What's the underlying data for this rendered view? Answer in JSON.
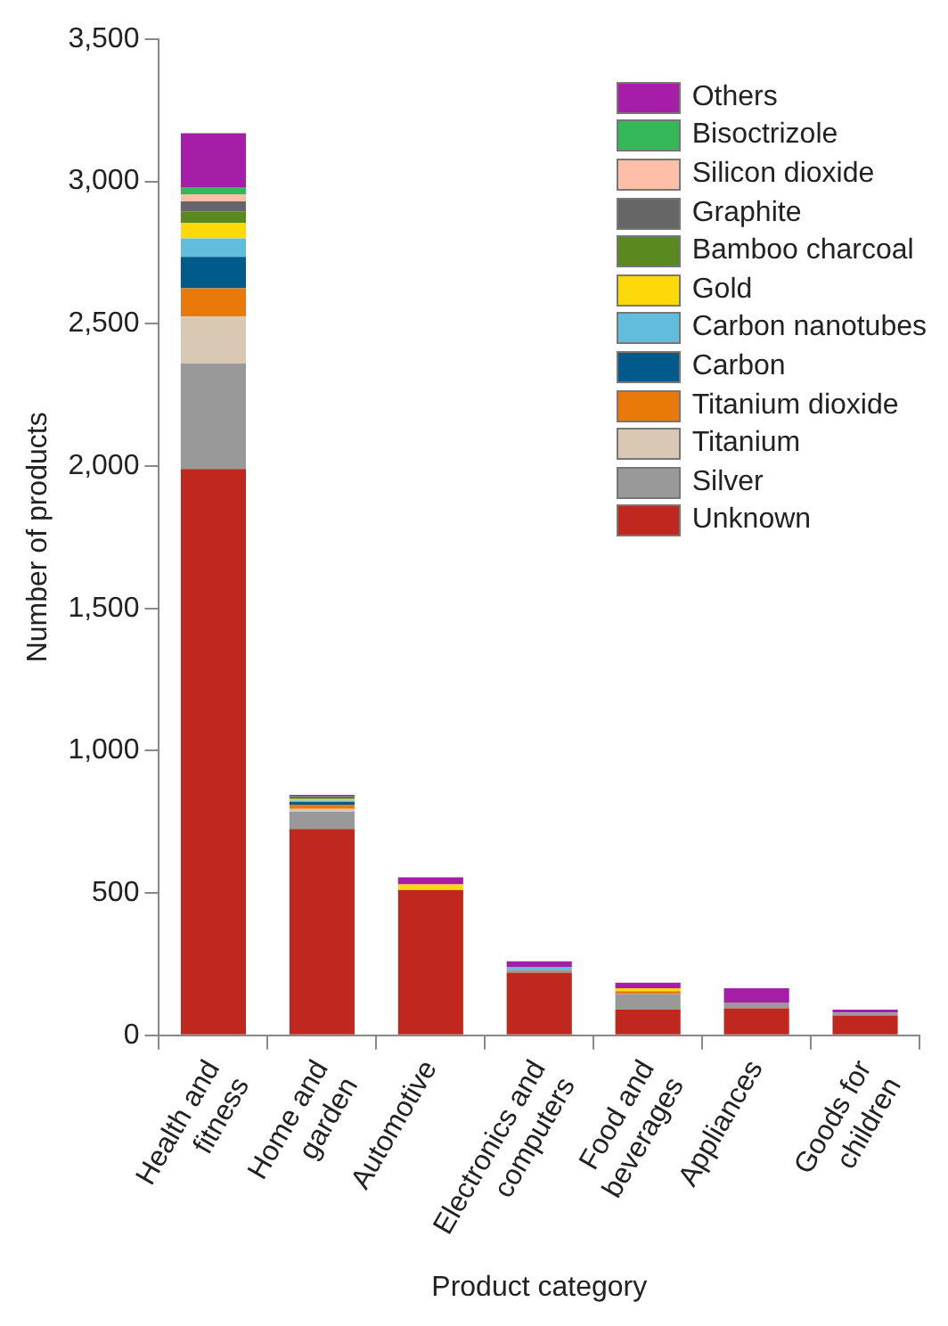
{
  "chart_data": {
    "type": "bar",
    "stacked": true,
    "xlabel": "Product category",
    "ylabel": "Number of products",
    "categories": [
      "Health and fitness",
      "Home and garden",
      "Automotive",
      "Electronics and computers",
      "Food and beverages",
      "Appliances",
      "Goods for children"
    ],
    "ylim": [
      0,
      3500
    ],
    "yticks": [
      0,
      {
        "value": 500,
        "label": "500"
      },
      {
        "value": 1000,
        "label": "1,000"
      },
      {
        "value": 1500,
        "label": "1,500"
      },
      {
        "value": 2000,
        "label": "2,000"
      },
      {
        "value": 2500,
        "label": "2,500"
      },
      {
        "value": 3000,
        "label": "3,000"
      },
      {
        "value": 3500,
        "label": "3,500"
      }
    ],
    "grid": false,
    "legend": "top right",
    "series": [
      {
        "name": "Unknown",
        "color": "#c0281f",
        "values": [
          1990,
          725,
          510,
          220,
          90,
          95,
          70
        ]
      },
      {
        "name": "Silver",
        "color": "#999999",
        "values": [
          370,
          60,
          0,
          10,
          55,
          20,
          10
        ]
      },
      {
        "name": "Titanium",
        "color": "#d8c8b4",
        "values": [
          165,
          10,
          null,
          0,
          null,
          0,
          0
        ]
      },
      {
        "name": "Titanium dioxide",
        "color": "#e97a0a",
        "values": [
          100,
          15,
          0,
          0,
          10,
          0,
          0
        ]
      },
      {
        "name": "Carbon",
        "color": "#005a8a",
        "values": [
          110,
          10,
          0,
          0,
          0,
          0,
          0
        ]
      },
      {
        "name": "Carbon nanotubes",
        "color": "#62bcdc",
        "values": [
          65,
          5,
          0,
          10,
          0,
          0,
          0
        ]
      },
      {
        "name": "Gold",
        "color": "#fed90a",
        "values": [
          55,
          5,
          20,
          0,
          10,
          0,
          0
        ]
      },
      {
        "name": "Bamboo charcoal",
        "color": "#5a8a1f",
        "values": [
          40,
          5,
          0,
          0,
          0,
          0,
          0
        ]
      },
      {
        "name": "Graphite",
        "color": "#666666",
        "values": [
          35,
          5,
          0,
          0,
          0,
          0,
          0
        ]
      },
      {
        "name": "Silicon dioxide",
        "color": "#fdbfa8",
        "values": [
          25,
          null,
          0,
          0,
          0,
          0,
          0
        ]
      },
      {
        "name": "Bisoctrizole",
        "color": "#35b85a",
        "values": [
          25,
          0,
          0,
          0,
          0,
          0,
          0
        ]
      },
      {
        "name": "Others",
        "color": "#a61ea8",
        "values": [
          190,
          5,
          25,
          20,
          20,
          50,
          10
        ]
      }
    ]
  }
}
